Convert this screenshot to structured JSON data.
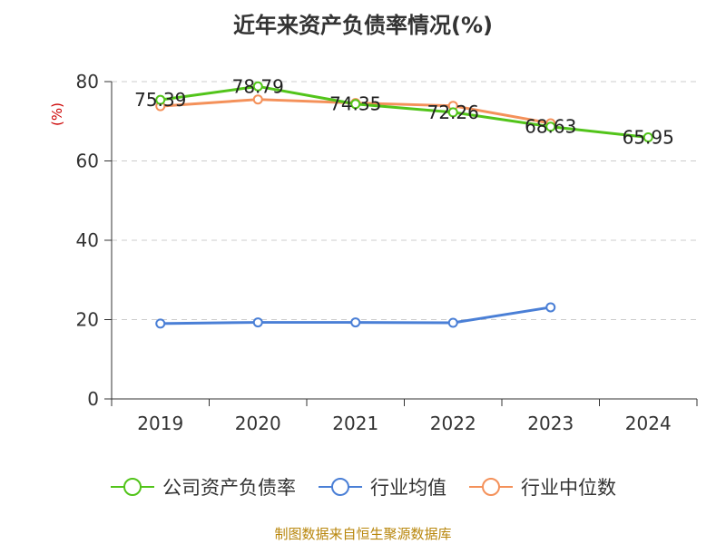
{
  "title": "近年来资产负债率情况(%)",
  "source": "制图数据来自恒生聚源数据库",
  "chart_data": {
    "type": "line",
    "title": "近年来资产负债率情况(%)",
    "ylabel": "(%)",
    "xlabel": "",
    "categories": [
      "2019",
      "2020",
      "2021",
      "2022",
      "2023",
      "2024"
    ],
    "ylim": [
      0,
      80
    ],
    "yticks": [
      0,
      20,
      40,
      60,
      80
    ],
    "grid": true,
    "legend_position": "bottom",
    "series": [
      {
        "name": "公司资产负债率",
        "color": "#52c41a",
        "values": [
          75.39,
          78.79,
          74.35,
          72.26,
          68.63,
          65.95
        ],
        "labels": [
          "75.39",
          "78.79",
          "74.35",
          "72.26",
          "68.63",
          "65.95"
        ]
      },
      {
        "name": "行业均值",
        "color": "#4a7fd6",
        "values": [
          19.0,
          19.3,
          19.3,
          19.2,
          23.1,
          null
        ]
      },
      {
        "name": "行业中位数",
        "color": "#f4915a",
        "values": [
          73.8,
          75.5,
          74.6,
          73.9,
          69.5,
          null
        ]
      }
    ]
  }
}
